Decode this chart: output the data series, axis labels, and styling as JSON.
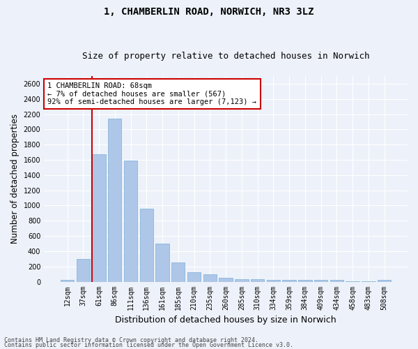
{
  "title_line1": "1, CHAMBERLIN ROAD, NORWICH, NR3 3LZ",
  "title_line2": "Size of property relative to detached houses in Norwich",
  "xlabel": "Distribution of detached houses by size in Norwich",
  "ylabel": "Number of detached properties",
  "categories": [
    "12sqm",
    "37sqm",
    "61sqm",
    "86sqm",
    "111sqm",
    "136sqm",
    "161sqm",
    "185sqm",
    "210sqm",
    "235sqm",
    "260sqm",
    "285sqm",
    "310sqm",
    "334sqm",
    "359sqm",
    "384sqm",
    "409sqm",
    "434sqm",
    "458sqm",
    "483sqm",
    "508sqm"
  ],
  "values": [
    25,
    300,
    1670,
    2140,
    1590,
    960,
    500,
    250,
    120,
    100,
    50,
    35,
    35,
    20,
    20,
    20,
    20,
    20,
    5,
    5,
    25
  ],
  "bar_color": "#aec6e8",
  "bar_edge_color": "#7aafd4",
  "vline_color": "#cc0000",
  "vline_x_index": 2,
  "annotation_text": "1 CHAMBERLIN ROAD: 68sqm\n← 7% of detached houses are smaller (567)\n92% of semi-detached houses are larger (7,123) →",
  "annotation_box_color": "#ffffff",
  "annotation_edge_color": "#cc0000",
  "ylim": [
    0,
    2700
  ],
  "yticks": [
    0,
    200,
    400,
    600,
    800,
    1000,
    1200,
    1400,
    1600,
    1800,
    2000,
    2200,
    2400,
    2600
  ],
  "footer_line1": "Contains HM Land Registry data © Crown copyright and database right 2024.",
  "footer_line2": "Contains public sector information licensed under the Open Government Licence v3.0.",
  "bg_color": "#edf2fa",
  "plot_bg_color": "#edf2fa",
  "grid_color": "#ffffff",
  "title_fontsize": 10,
  "subtitle_fontsize": 9,
  "tick_fontsize": 7,
  "ylabel_fontsize": 8.5,
  "xlabel_fontsize": 9,
  "footer_fontsize": 6,
  "annotation_fontsize": 7.5
}
